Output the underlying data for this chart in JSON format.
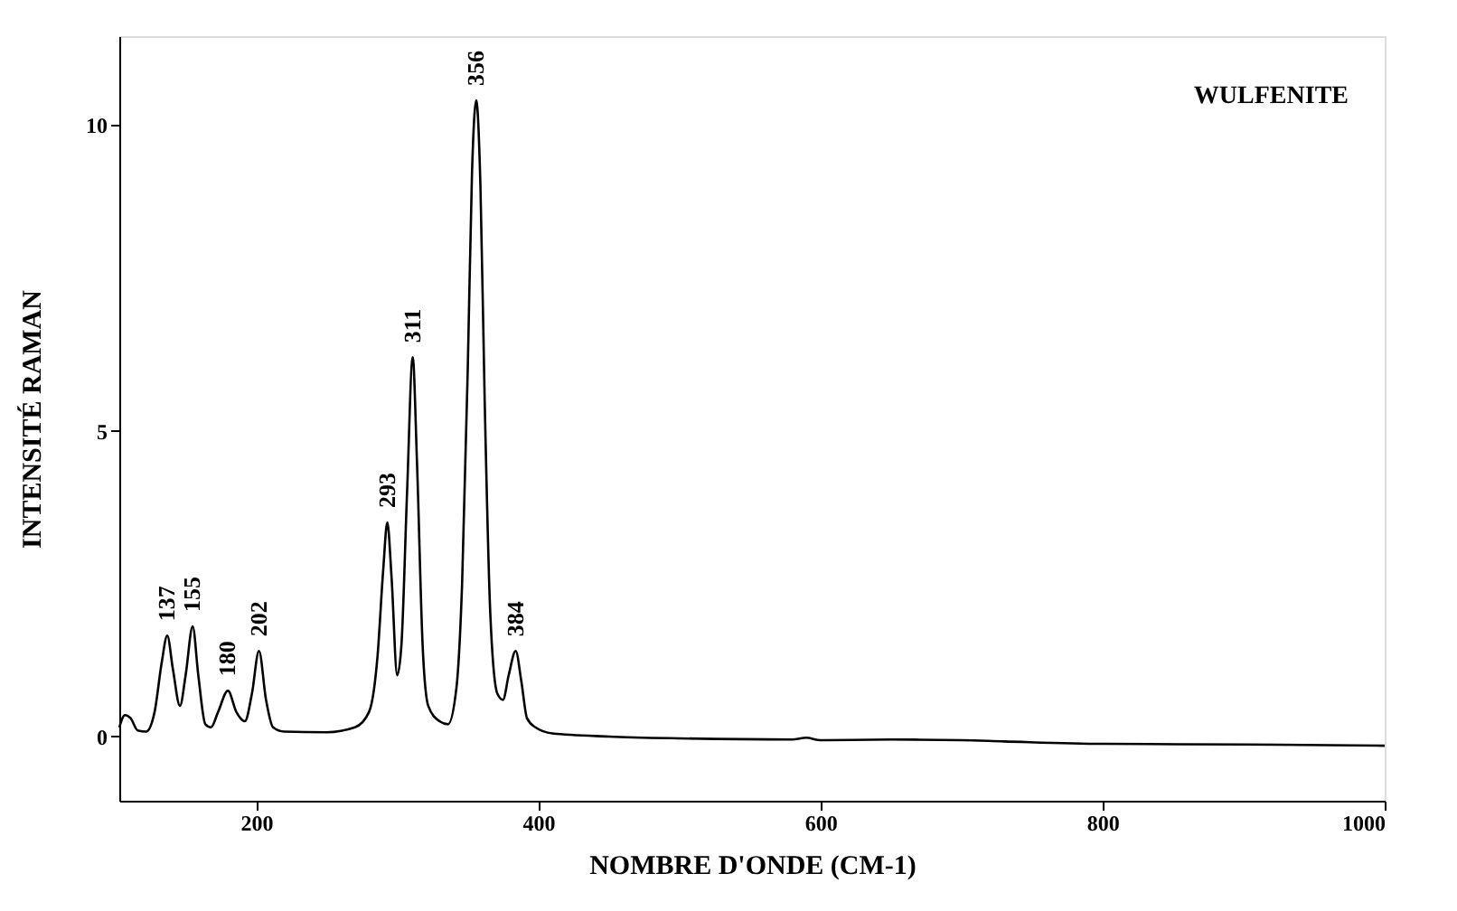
{
  "chart_data": {
    "type": "line",
    "title": "WULFENITE",
    "xlabel": "NOMBRE D'ONDE (CM-1)",
    "ylabel": "INTENSITÉ RAMAN",
    "xlim": [
      103,
      1000
    ],
    "ylim": [
      -1.05,
      11.45
    ],
    "xticks": [
      200,
      400,
      600,
      800,
      1000
    ],
    "yticks": [
      0,
      5,
      10
    ],
    "grid": false,
    "marker": "none",
    "line_style": "solid",
    "series": [
      {
        "color": "#000000",
        "x": [
          103,
          107,
          111,
          116,
          122,
          128,
          133,
          137,
          141,
          146,
          150,
          155,
          159,
          164,
          168,
          173,
          180,
          186,
          192,
          197,
          202,
          207,
          212,
          220,
          250,
          270,
          280,
          286,
          290,
          293,
          296,
          300,
          303,
          307,
          311,
          314,
          318,
          322,
          330,
          336,
          342,
          346,
          350,
          353,
          356,
          359,
          362,
          366,
          371,
          375,
          379,
          384,
          388,
          392,
          398,
          410,
          450,
          500,
          580,
          590,
          600,
          650,
          700,
          730,
          800,
          900,
          1000
        ],
        "values": [
          0.15,
          0.35,
          0.3,
          0.1,
          0.08,
          0.4,
          1.2,
          1.65,
          1.1,
          0.5,
          1.0,
          1.8,
          1.0,
          0.2,
          0.15,
          0.4,
          0.75,
          0.4,
          0.25,
          0.7,
          1.4,
          0.6,
          0.15,
          0.08,
          0.07,
          0.15,
          0.4,
          1.3,
          2.7,
          3.5,
          2.6,
          1.0,
          1.5,
          4.0,
          6.2,
          4.5,
          1.5,
          0.5,
          0.25,
          0.2,
          0.8,
          2.5,
          6.0,
          9.2,
          10.4,
          9.0,
          5.5,
          2.0,
          0.7,
          0.6,
          1.0,
          1.4,
          0.9,
          0.3,
          0.15,
          0.05,
          0.0,
          -0.03,
          -0.05,
          -0.02,
          -0.06,
          -0.05,
          -0.06,
          -0.08,
          -0.12,
          -0.13,
          -0.15
        ]
      }
    ],
    "annotations": [
      {
        "text": "137",
        "x": 137,
        "y": 1.65
      },
      {
        "text": "155",
        "x": 155,
        "y": 1.8
      },
      {
        "text": "180",
        "x": 180,
        "y": 0.75
      },
      {
        "text": "202",
        "x": 202,
        "y": 1.4
      },
      {
        "text": "293",
        "x": 293,
        "y": 3.5
      },
      {
        "text": "311",
        "x": 311,
        "y": 6.2
      },
      {
        "text": "356",
        "x": 356,
        "y": 10.4
      },
      {
        "text": "384",
        "x": 384,
        "y": 1.4
      }
    ]
  }
}
